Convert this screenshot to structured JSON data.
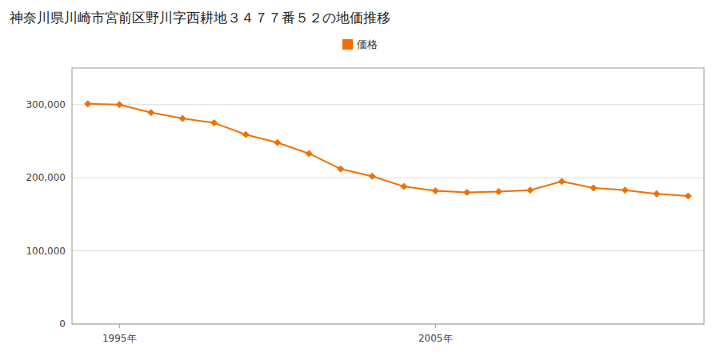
{
  "chart_data": {
    "type": "line",
    "title": "神奈川県川崎市宮前区野川字西耕地３４７７番５２の地価推移",
    "x": [
      1994,
      1995,
      1996,
      1997,
      1998,
      1999,
      2000,
      2001,
      2002,
      2003,
      2004,
      2005,
      2006,
      2007,
      2008,
      2009,
      2010,
      2011,
      2012,
      2013
    ],
    "series": [
      {
        "name": "価格",
        "color": "#f07000",
        "marker": "diamond",
        "line_style": "solid",
        "values": [
          301000,
          300000,
          289000,
          281000,
          275000,
          259000,
          248000,
          233000,
          212000,
          202000,
          188000,
          182000,
          180000,
          181000,
          183000,
          195000,
          186000,
          183000,
          178000,
          175000
        ]
      }
    ],
    "xlim": [
      1993.5,
      2013.5
    ],
    "xticks": [
      {
        "value": 1995,
        "label": "1995年"
      },
      {
        "value": 2005,
        "label": "2005年"
      }
    ],
    "ylim": [
      0,
      350000
    ],
    "yticks": [
      0,
      {
        "value": 100000,
        "label": "100,000"
      },
      {
        "value": 200000,
        "label": "200,000"
      },
      {
        "value": 300000,
        "label": "300,000"
      }
    ],
    "grid": true,
    "legend": "top"
  }
}
